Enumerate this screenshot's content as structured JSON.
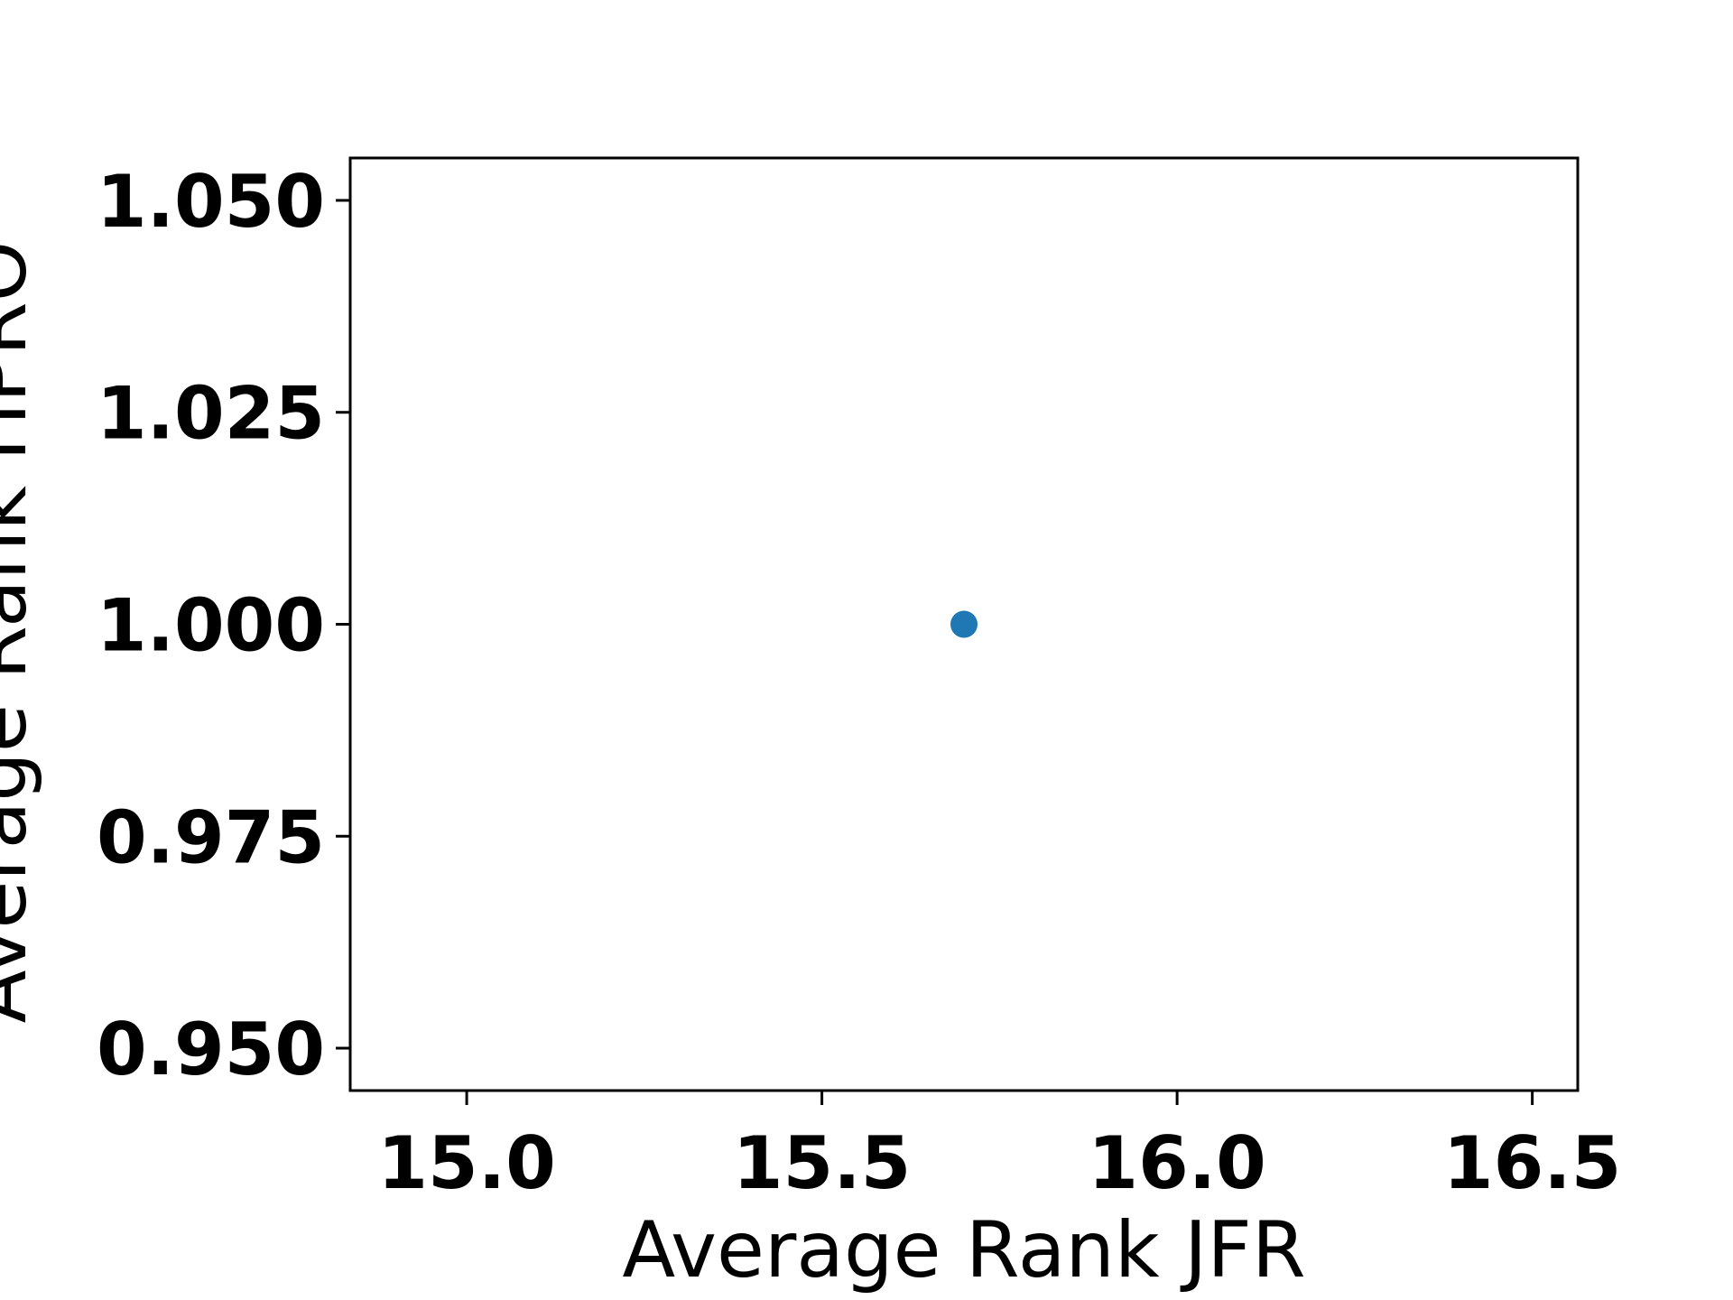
{
  "chart_data": {
    "type": "scatter",
    "title": "",
    "xlabel": "Average Rank JFR",
    "ylabel": "Average Rank HPRO",
    "xlim": [
      14.836,
      16.564
    ],
    "ylim": [
      0.945,
      1.055
    ],
    "xticks": [
      15.0,
      15.5,
      16.0,
      16.5
    ],
    "xtick_labels": [
      "15.0",
      "15.5",
      "16.0",
      "16.5"
    ],
    "yticks": [
      0.95,
      0.975,
      1.0,
      1.025,
      1.05
    ],
    "ytick_labels": [
      "0.950",
      "0.975",
      "1.000",
      "1.025",
      "1.050"
    ],
    "grid": false,
    "series": [
      {
        "x": [
          15.7
        ],
        "y": [
          1.0
        ],
        "color": "#1f77b4"
      }
    ]
  }
}
